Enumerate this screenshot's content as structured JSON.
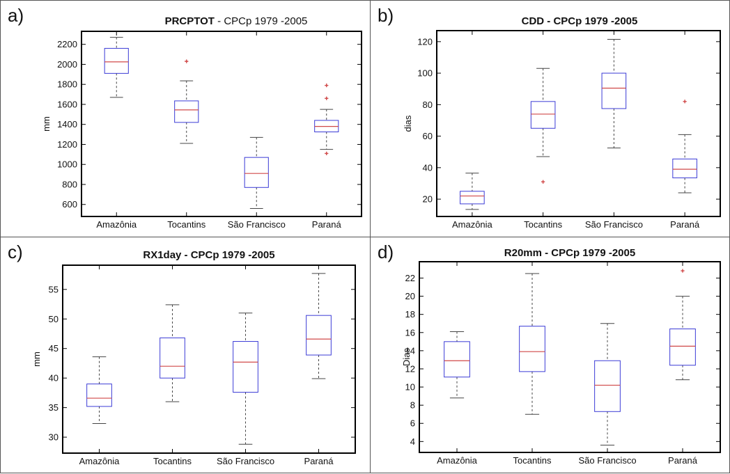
{
  "colors": {
    "box_stroke": "#3b3bd6",
    "median": "#d04848",
    "whisker": "#444444",
    "outlier": "#d04848",
    "frame": "#000000",
    "text": "#111111"
  },
  "chart_data": [
    {
      "type": "box",
      "panel_label": "a)",
      "title_bold": "PRCPTOT",
      "title_rest": " - CPCp 1979 -2005",
      "ylabel": "mm",
      "xlabel": "",
      "categories": [
        "Amazônia",
        "Tocantins",
        "São Francisco",
        "Paraná"
      ],
      "ylim": [
        480,
        2330
      ],
      "yticks": [
        600,
        800,
        1000,
        1200,
        1400,
        1600,
        1800,
        2000,
        2200
      ],
      "grid": false,
      "boxes": [
        {
          "whislo": 1670,
          "q1": 1910,
          "med": 2025,
          "q3": 2160,
          "whishi": 2270,
          "fliers": []
        },
        {
          "whislo": 1210,
          "q1": 1420,
          "med": 1545,
          "q3": 1635,
          "whishi": 1835,
          "fliers": [
            2030
          ]
        },
        {
          "whislo": 560,
          "q1": 770,
          "med": 910,
          "q3": 1070,
          "whishi": 1270,
          "fliers": []
        },
        {
          "whislo": 1150,
          "q1": 1325,
          "med": 1380,
          "q3": 1440,
          "whishi": 1550,
          "fliers": [
            1110,
            1660,
            1790
          ]
        }
      ]
    },
    {
      "type": "box",
      "panel_label": "b)",
      "title_bold": "",
      "title_rest": "CDD - CPCp 1979 -2005",
      "ylabel": "dias",
      "xlabel": "",
      "categories": [
        "Amazônia",
        "Tocantins",
        "São Francisco",
        "Paraná"
      ],
      "ylim": [
        9,
        127
      ],
      "yticks": [
        20,
        40,
        60,
        80,
        100,
        120
      ],
      "grid": false,
      "boxes": [
        {
          "whislo": 13.5,
          "q1": 17,
          "med": 22,
          "q3": 25,
          "whishi": 36.5,
          "fliers": []
        },
        {
          "whislo": 47,
          "q1": 65,
          "med": 74,
          "q3": 82,
          "whishi": 103,
          "fliers": [
            31
          ]
        },
        {
          "whislo": 52.5,
          "q1": 77.5,
          "med": 90.5,
          "q3": 100,
          "whishi": 121.5,
          "fliers": []
        },
        {
          "whislo": 24,
          "q1": 33.5,
          "med": 39,
          "q3": 45.5,
          "whishi": 61,
          "fliers": [
            82
          ]
        }
      ]
    },
    {
      "type": "box",
      "panel_label": "c)",
      "title_bold": "",
      "title_rest": "RX1day - CPCp 1979 -2005",
      "ylabel": "mm",
      "xlabel": "",
      "categories": [
        "Amazônia",
        "Tocantins",
        "São Francisco",
        "Paraná"
      ],
      "ylim": [
        27.3,
        59.1
      ],
      "yticks": [
        30,
        35,
        40,
        45,
        50,
        55
      ],
      "grid": false,
      "boxes": [
        {
          "whislo": 32.3,
          "q1": 35.2,
          "med": 36.6,
          "q3": 39.0,
          "whishi": 43.6,
          "fliers": []
        },
        {
          "whislo": 36.0,
          "q1": 40.0,
          "med": 42.0,
          "q3": 46.8,
          "whishi": 52.4,
          "fliers": []
        },
        {
          "whislo": 28.8,
          "q1": 37.6,
          "med": 42.7,
          "q3": 46.2,
          "whishi": 51.0,
          "fliers": []
        },
        {
          "whislo": 39.9,
          "q1": 43.9,
          "med": 46.6,
          "q3": 50.6,
          "whishi": 57.7,
          "fliers": []
        }
      ]
    },
    {
      "type": "box",
      "panel_label": "d)",
      "title_bold": "",
      "title_rest": "R20mm - CPCp 1979 -2005",
      "ylabel": "Dias",
      "xlabel": "",
      "categories": [
        "Amazônia",
        "Tocantins",
        "São Francisco",
        "Paraná"
      ],
      "ylim": [
        2.8,
        23.8
      ],
      "yticks": [
        4,
        6,
        8,
        10,
        12,
        14,
        16,
        18,
        20,
        22
      ],
      "grid": false,
      "boxes": [
        {
          "whislo": 8.8,
          "q1": 11.1,
          "med": 12.9,
          "q3": 15.0,
          "whishi": 16.1,
          "fliers": []
        },
        {
          "whislo": 7.0,
          "q1": 11.7,
          "med": 13.9,
          "q3": 16.7,
          "whishi": 22.5,
          "fliers": []
        },
        {
          "whislo": 3.6,
          "q1": 7.3,
          "med": 10.2,
          "q3": 12.9,
          "whishi": 17.0,
          "fliers": []
        },
        {
          "whislo": 10.8,
          "q1": 12.4,
          "med": 14.5,
          "q3": 16.4,
          "whishi": 20.0,
          "fliers": [
            22.8
          ]
        }
      ]
    }
  ]
}
